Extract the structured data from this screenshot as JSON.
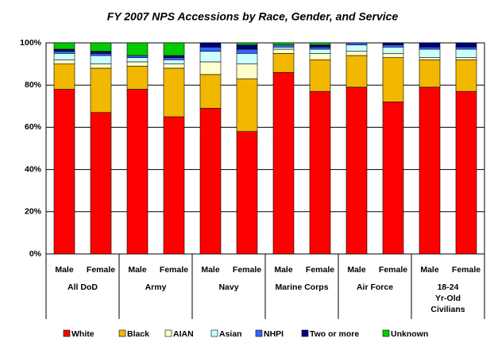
{
  "chart_data": {
    "type": "stacked_bar",
    "title": "FY 2007 NPS Accessions by Race, Gender, and Service",
    "categories": [
      "Male",
      "Female",
      "Male",
      "Female",
      "Male",
      "Female",
      "Male",
      "Female",
      "Male",
      "Female",
      "Male",
      "Female"
    ],
    "groups": [
      [
        "All DoD"
      ],
      [
        "Army"
      ],
      [
        "Navy"
      ],
      [
        "Marine Corps"
      ],
      [
        "Air Force"
      ],
      [
        "18-24",
        "Yr-Old",
        "Civilians"
      ]
    ],
    "series": [
      {
        "name": "White",
        "color": "#ff0000",
        "values": [
          78,
          67,
          78,
          65,
          69,
          58,
          86,
          77,
          79,
          72,
          79,
          77
        ]
      },
      {
        "name": "Black",
        "color": "#f2b800",
        "values": [
          12,
          21,
          11,
          23,
          16,
          25,
          9,
          15,
          15,
          21,
          13,
          15
        ]
      },
      {
        "name": "AIAN",
        "color": "#ffffcc",
        "values": [
          2,
          2,
          2,
          2,
          6,
          7,
          2,
          3,
          2,
          2,
          1,
          1
        ]
      },
      {
        "name": "Asian",
        "color": "#ccffff",
        "values": [
          3,
          4,
          2,
          2,
          5,
          5,
          1,
          2,
          3,
          3,
          4,
          4
        ]
      },
      {
        "name": "NHPI",
        "color": "#3366ff",
        "values": [
          1,
          1,
          1,
          1,
          2,
          2,
          1,
          1,
          1,
          1,
          1,
          1
        ]
      },
      {
        "name": "Two or more",
        "color": "#000080",
        "values": [
          1,
          1,
          0,
          1,
          2,
          2,
          0,
          1,
          0,
          1,
          2,
          2
        ]
      },
      {
        "name": "Unknown",
        "color": "#00cc00",
        "values": [
          3,
          4,
          6,
          6,
          0,
          1,
          1,
          1,
          0,
          0,
          0,
          0
        ]
      }
    ],
    "ylim": [
      0,
      100
    ],
    "yticks": [
      {
        "value": 0,
        "label": "0%"
      },
      {
        "value": 20,
        "label": "20%"
      },
      {
        "value": 40,
        "label": "40%"
      },
      {
        "value": 60,
        "label": "60%"
      },
      {
        "value": 80,
        "label": "80%"
      },
      {
        "value": 100,
        "label": "100%"
      }
    ],
    "grid": true
  }
}
